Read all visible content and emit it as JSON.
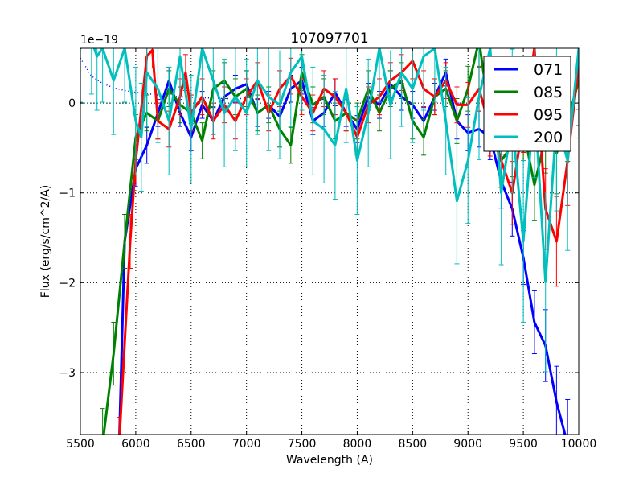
{
  "chart_data": {
    "type": "line",
    "title": "107097701",
    "xlabel": "Wavelength (A)",
    "ylabel": "Flux (erg/s/cm^2/A)",
    "y_offset_label": "1e−19",
    "y_scale": 1e-19,
    "xlim": [
      5500,
      10000
    ],
    "ylim": [
      -3.69,
      0.61
    ],
    "grid": true,
    "legend_position": "top-right",
    "xticks": [
      5500,
      6000,
      6500,
      7000,
      7500,
      8000,
      8500,
      9000,
      9500,
      10000
    ],
    "xtick_labels": [
      "5500",
      "6000",
      "6500",
      "7000",
      "7500",
      "8000",
      "8500",
      "9000",
      "9500",
      "10000"
    ],
    "yticks": [
      -3,
      -2,
      -1,
      0
    ],
    "ytick_labels": [
      "−3",
      "−2",
      "−1",
      "0"
    ],
    "series": [
      {
        "name": "071",
        "color": "#0000ff",
        "x": [
          5850,
          5900,
          6000,
          6100,
          6200,
          6300,
          6400,
          6500,
          6600,
          6700,
          6800,
          6900,
          7000,
          7100,
          7200,
          7300,
          7400,
          7500,
          7600,
          7700,
          7800,
          7900,
          8000,
          8100,
          8200,
          8300,
          8400,
          8500,
          8600,
          8700,
          8800,
          8900,
          9000,
          9100,
          9200,
          9300,
          9400,
          9500,
          9600,
          9700,
          9800,
          9900
        ],
        "y": [
          -3.8,
          -1.54,
          -0.73,
          -0.47,
          -0.11,
          0.25,
          -0.11,
          -0.38,
          -0.02,
          -0.2,
          0.07,
          0.16,
          0.21,
          -0.11,
          -0.02,
          -0.15,
          0.16,
          0.25,
          -0.2,
          -0.11,
          0.12,
          -0.11,
          -0.29,
          0.07,
          -0.02,
          0.21,
          0.07,
          -0.02,
          -0.2,
          0.07,
          0.34,
          -0.2,
          -0.33,
          -0.29,
          -0.38,
          -0.87,
          -1.18,
          -1.72,
          -2.44,
          -2.7,
          -3.33,
          -3.8
        ],
        "err": [
          0.3,
          0.3,
          0.2,
          0.2,
          0.15,
          0.15,
          0.15,
          0.15,
          0.15,
          0.15,
          0.15,
          0.15,
          0.15,
          0.15,
          0.15,
          0.15,
          0.15,
          0.15,
          0.15,
          0.15,
          0.15,
          0.15,
          0.15,
          0.15,
          0.15,
          0.15,
          0.15,
          0.15,
          0.15,
          0.15,
          0.15,
          0.2,
          0.2,
          0.2,
          0.25,
          0.3,
          0.3,
          0.3,
          0.35,
          0.4,
          0.4,
          0.5
        ]
      },
      {
        "name": "085",
        "color": "#008000",
        "x": [
          5700,
          5800,
          5900,
          6000,
          6100,
          6200,
          6300,
          6400,
          6500,
          6600,
          6700,
          6800,
          6900,
          7000,
          7100,
          7200,
          7300,
          7400,
          7500,
          7600,
          7700,
          7800,
          7900,
          8000,
          8100,
          8200,
          8300,
          8400,
          8500,
          8600,
          8700,
          8800,
          8900,
          9000,
          9100,
          9200,
          9300,
          9400,
          9500,
          9600,
          9700,
          9800,
          9900,
          10000
        ],
        "y": [
          -3.8,
          -2.79,
          -1.54,
          -0.38,
          -0.11,
          -0.2,
          0.16,
          -0.02,
          -0.11,
          -0.42,
          0.16,
          0.25,
          0.07,
          0.16,
          -0.11,
          -0.02,
          -0.29,
          -0.47,
          0.34,
          -0.02,
          0.07,
          -0.2,
          -0.11,
          -0.2,
          0.16,
          -0.11,
          0.16,
          0.25,
          -0.2,
          -0.38,
          0.07,
          0.16,
          -0.2,
          0.16,
          0.7,
          -0.2,
          -0.64,
          -0.47,
          -0.29,
          -0.91,
          -0.38,
          -0.56,
          -0.2,
          0.25
        ],
        "err": [
          0.4,
          0.35,
          0.3,
          0.25,
          0.2,
          0.2,
          0.2,
          0.2,
          0.2,
          0.2,
          0.2,
          0.2,
          0.2,
          0.2,
          0.2,
          0.2,
          0.2,
          0.2,
          0.2,
          0.2,
          0.2,
          0.2,
          0.2,
          0.2,
          0.2,
          0.2,
          0.2,
          0.2,
          0.2,
          0.2,
          0.2,
          0.2,
          0.25,
          0.25,
          0.3,
          0.3,
          0.3,
          0.35,
          0.35,
          0.4,
          0.4,
          0.45,
          0.45,
          0.5
        ]
      },
      {
        "name": "095",
        "color": "#ff0000",
        "x": [
          5850,
          5950,
          6000,
          6100,
          6150,
          6200,
          6300,
          6400,
          6450,
          6500,
          6600,
          6700,
          6800,
          6900,
          7000,
          7100,
          7200,
          7300,
          7400,
          7500,
          7600,
          7700,
          7800,
          7900,
          8000,
          8100,
          8200,
          8300,
          8400,
          8500,
          8600,
          8700,
          8800,
          8900,
          9000,
          9100,
          9200,
          9300,
          9400,
          9500,
          9600,
          9700,
          9800,
          9900,
          10000
        ],
        "y": [
          -3.8,
          -1.54,
          -0.64,
          0.52,
          0.59,
          -0.2,
          -0.29,
          0.07,
          0.34,
          -0.11,
          0.07,
          -0.2,
          -0.02,
          -0.2,
          0.07,
          0.25,
          -0.11,
          0.16,
          0.3,
          0.07,
          -0.11,
          0.16,
          0.07,
          -0.11,
          -0.38,
          -0.02,
          0.07,
          0.25,
          0.34,
          0.47,
          0.16,
          0.07,
          0.25,
          -0.02,
          -0.02,
          0.16,
          -0.29,
          -0.64,
          -1.0,
          -0.2,
          0.61,
          -1.18,
          -1.54,
          -0.64,
          0.43
        ],
        "err": [
          0.3,
          0.3,
          0.25,
          0.2,
          0.2,
          0.2,
          0.2,
          0.2,
          0.2,
          0.2,
          0.2,
          0.2,
          0.2,
          0.2,
          0.2,
          0.2,
          0.2,
          0.2,
          0.2,
          0.2,
          0.2,
          0.2,
          0.2,
          0.2,
          0.2,
          0.2,
          0.2,
          0.2,
          0.2,
          0.2,
          0.2,
          0.2,
          0.2,
          0.2,
          0.25,
          0.25,
          0.3,
          0.3,
          0.35,
          0.35,
          0.4,
          0.45,
          0.5,
          0.5,
          0.5
        ]
      },
      {
        "name": "200",
        "color": "#00bfbf",
        "x": [
          5500,
          5600,
          5650,
          5700,
          5800,
          5900,
          6000,
          6050,
          6100,
          6200,
          6300,
          6400,
          6500,
          6600,
          6700,
          6800,
          6900,
          7000,
          7100,
          7200,
          7300,
          7400,
          7500,
          7600,
          7700,
          7800,
          7900,
          8000,
          8100,
          8200,
          8300,
          8400,
          8500,
          8600,
          8700,
          8800,
          8900,
          9000,
          9100,
          9200,
          9300,
          9400,
          9500,
          9600,
          9700,
          9800,
          9900,
          10000
        ],
        "y": [
          0.61,
          0.7,
          0.52,
          0.61,
          0.25,
          0.61,
          -0.2,
          -0.38,
          0.34,
          0.16,
          -0.2,
          0.52,
          -0.29,
          0.61,
          0.25,
          -0.11,
          0.07,
          -0.11,
          0.25,
          0.07,
          -0.02,
          0.34,
          0.52,
          -0.2,
          -0.29,
          -0.47,
          0.16,
          -0.64,
          -0.11,
          0.61,
          -0.02,
          0.34,
          0.16,
          0.52,
          0.61,
          -0.2,
          -1.09,
          -0.64,
          0.07,
          0.61,
          -1.0,
          -0.2,
          -1.54,
          0.07,
          -1.99,
          -0.2,
          -0.64,
          0.61
        ],
        "err": [
          0.6,
          0.6,
          0.6,
          0.6,
          0.6,
          0.6,
          0.6,
          0.6,
          0.6,
          0.6,
          0.6,
          0.6,
          0.6,
          0.6,
          0.6,
          0.6,
          0.6,
          0.6,
          0.6,
          0.6,
          0.6,
          0.6,
          0.6,
          0.6,
          0.6,
          0.6,
          0.6,
          0.6,
          0.6,
          0.6,
          0.6,
          0.6,
          0.6,
          0.6,
          0.6,
          0.6,
          0.7,
          0.7,
          0.7,
          0.7,
          0.8,
          0.8,
          0.9,
          0.9,
          1.0,
          1.0,
          1.0,
          1.0
        ]
      }
    ],
    "reference_curve": {
      "name": "dotted",
      "color": "#0000ff",
      "x": [
        5500,
        5600,
        5700,
        5800,
        5900,
        6000,
        6200,
        6400,
        6600,
        6800,
        7000
      ],
      "y": [
        0.5,
        0.3,
        0.22,
        0.17,
        0.14,
        0.12,
        0.09,
        0.07,
        0.06,
        0.05,
        0.05
      ]
    }
  }
}
